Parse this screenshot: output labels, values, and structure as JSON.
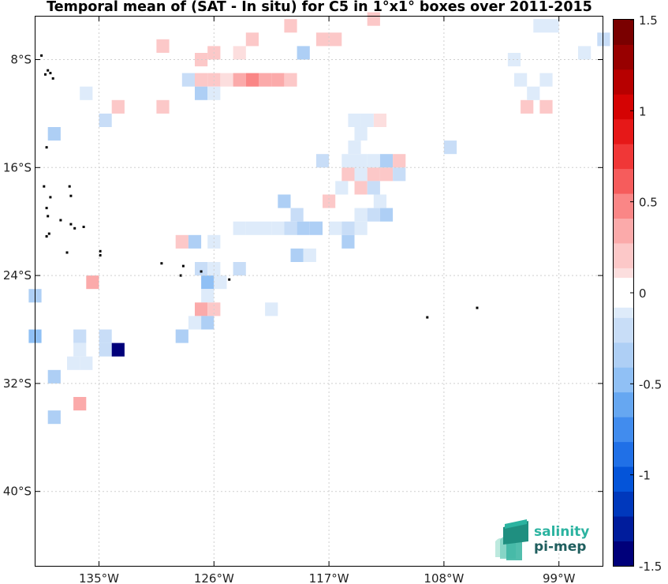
{
  "title": "Temporal mean of (SAT - In situ) for C5 in 1°x1° boxes over 2011-2015",
  "map": {
    "lon_ticks": [
      "135°W",
      "126°W",
      "117°W",
      "108°W",
      "99°W"
    ],
    "lat_ticks": [
      "8°S",
      "16°S",
      "24°S",
      "32°S",
      "40°S"
    ],
    "lon_range": [
      -140,
      -95.5
    ],
    "lat_range": [
      -46,
      -4.5
    ],
    "cells": [
      [
        -113.5,
        -5,
        0.15
      ],
      [
        -120,
        -5.5,
        0.2
      ],
      [
        -100.5,
        -5.5,
        -0.1
      ],
      [
        -99.5,
        -5.5,
        -0.1
      ],
      [
        -126,
        -7.5,
        0.2
      ],
      [
        -123,
        -6.5,
        0.15
      ],
      [
        -130,
        -7,
        0.25
      ],
      [
        -127,
        -8,
        0.25
      ],
      [
        -117.5,
        -6.5,
        0.15
      ],
      [
        -116.5,
        -6.5,
        0.15
      ],
      [
        -95.5,
        -6.5,
        -0.25
      ],
      [
        -97,
        -7.5,
        -0.1
      ],
      [
        -119,
        -7.5,
        -0.3
      ],
      [
        -124,
        -7.5,
        0.1
      ],
      [
        -102.5,
        -8,
        -0.1
      ],
      [
        -128,
        -9.5,
        -0.2
      ],
      [
        -127,
        -9.5,
        0.25
      ],
      [
        -126,
        -9.5,
        0.15
      ],
      [
        -125,
        -9.5,
        0.1
      ],
      [
        -124,
        -9.5,
        0.35
      ],
      [
        -123,
        -9.5,
        0.45
      ],
      [
        -122,
        -9.5,
        0.3
      ],
      [
        -121,
        -9.5,
        0.4
      ],
      [
        -120,
        -9.5,
        0.2
      ],
      [
        -102,
        -9.5,
        -0.1
      ],
      [
        -100,
        -9.5,
        -0.1
      ],
      [
        -136,
        -10.5,
        -0.1
      ],
      [
        -127,
        -10.5,
        -0.3
      ],
      [
        -126,
        -10.5,
        -0.1
      ],
      [
        -133.5,
        -11.5,
        0.15
      ],
      [
        -130,
        -11.5,
        0.2
      ],
      [
        -100,
        -11.5,
        0.15
      ],
      [
        -101.5,
        -11.5,
        0.15
      ],
      [
        -101,
        -10.5,
        -0.1
      ],
      [
        -134.5,
        -12.5,
        -0.2
      ],
      [
        -115,
        -12.5,
        -0.1
      ],
      [
        -113,
        -12.5,
        0.1
      ],
      [
        -114,
        -12.5,
        -0.1
      ],
      [
        -138.5,
        -13.5,
        -0.3
      ],
      [
        -114.5,
        -13.5,
        -0.1
      ],
      [
        -115,
        -14.5,
        -0.1
      ],
      [
        -107.5,
        -14.5,
        -0.25
      ],
      [
        -117.5,
        -15.5,
        -0.25
      ],
      [
        -115.5,
        -15.5,
        -0.1
      ],
      [
        -114.5,
        -15.5,
        -0.1
      ],
      [
        -113.5,
        -15.5,
        -0.1
      ],
      [
        -112.5,
        -15.5,
        -0.35
      ],
      [
        -111.5,
        -15.5,
        0.2
      ],
      [
        -115.5,
        -16.5,
        0.2
      ],
      [
        -114.5,
        -16.5,
        -0.1
      ],
      [
        -113.5,
        -16.5,
        0.2
      ],
      [
        -112.5,
        -16.5,
        0.2
      ],
      [
        -111.5,
        -16.5,
        -0.25
      ],
      [
        -116,
        -17.5,
        -0.1
      ],
      [
        -114.5,
        -17.5,
        0.15
      ],
      [
        -113.5,
        -17.5,
        -0.15
      ],
      [
        -120.5,
        -18.5,
        -0.3
      ],
      [
        -117,
        -18.5,
        0.2
      ],
      [
        -113,
        -18.5,
        -0.1
      ],
      [
        -119.5,
        -19.5,
        -0.2
      ],
      [
        -114.5,
        -19.5,
        -0.1
      ],
      [
        -113.5,
        -19.5,
        -0.15
      ],
      [
        -112.5,
        -19.5,
        -0.4
      ],
      [
        -124,
        -20.5,
        -0.1
      ],
      [
        -123,
        -20.5,
        -0.1
      ],
      [
        -122,
        -20.5,
        -0.1
      ],
      [
        -121,
        -20.5,
        -0.1
      ],
      [
        -120,
        -20.5,
        -0.2
      ],
      [
        -119,
        -20.5,
        -0.3
      ],
      [
        -118,
        -20.5,
        -0.4
      ],
      [
        -116.5,
        -20.5,
        -0.1
      ],
      [
        -115.5,
        -20.5,
        -0.2
      ],
      [
        -114.5,
        -20.5,
        -0.1
      ],
      [
        -128.5,
        -21.5,
        0.15
      ],
      [
        -127.5,
        -21.5,
        -0.3
      ],
      [
        -126,
        -21.5,
        -0.1
      ],
      [
        -115.5,
        -21.5,
        -0.4
      ],
      [
        -119.5,
        -22.5,
        -0.3
      ],
      [
        -118.5,
        -22.5,
        -0.1
      ],
      [
        -127,
        -23.5,
        -0.2
      ],
      [
        -126,
        -23.5,
        -0.1
      ],
      [
        -124,
        -23.5,
        -0.25
      ],
      [
        -126.5,
        -24.5,
        -0.45
      ],
      [
        -125.5,
        -24.5,
        -0.1
      ],
      [
        -135.5,
        -24.5,
        0.3
      ],
      [
        -140,
        -25.5,
        -0.4
      ],
      [
        -126.5,
        -25.5,
        -0.1
      ],
      [
        -127,
        -26.5,
        0.3
      ],
      [
        -126,
        -26.5,
        0.15
      ],
      [
        -121.5,
        -26.5,
        -0.1
      ],
      [
        -127.5,
        -27.5,
        -0.1
      ],
      [
        -126.5,
        -27.5,
        -0.3
      ],
      [
        -140,
        -28.5,
        -0.5
      ],
      [
        -136.5,
        -28.5,
        -0.25
      ],
      [
        -134.5,
        -28.5,
        -0.25
      ],
      [
        -128.5,
        -28.5,
        -0.3
      ],
      [
        -136.5,
        -29.5,
        -0.1
      ],
      [
        -134.5,
        -29.5,
        -0.25
      ],
      [
        -133.5,
        -29.5,
        -1.5
      ],
      [
        -137,
        -30.5,
        -0.1
      ],
      [
        -136,
        -30.5,
        -0.1
      ],
      [
        -138.5,
        -31.5,
        -0.3
      ],
      [
        -136.5,
        -33.5,
        0.3
      ],
      [
        -138.5,
        -34.5,
        -0.3
      ]
    ],
    "islands": [
      [
        -139.5,
        -7.7
      ],
      [
        -139,
        -8.8
      ],
      [
        -138.6,
        -9.4
      ],
      [
        -138.8,
        -9.0
      ],
      [
        -139.2,
        -9.1
      ],
      [
        -139.1,
        -14.5
      ],
      [
        -139.3,
        -17.4
      ],
      [
        -137.3,
        -17.4
      ],
      [
        -137.2,
        -18.1
      ],
      [
        -138.8,
        -18.2
      ],
      [
        -139.1,
        -19.0
      ],
      [
        -139.0,
        -19.6
      ],
      [
        -138.0,
        -19.9
      ],
      [
        -137.2,
        -20.2
      ],
      [
        -136.9,
        -20.5
      ],
      [
        -136.2,
        -20.4
      ],
      [
        -138.9,
        -20.9
      ],
      [
        -139.1,
        -21.1
      ],
      [
        -137.5,
        -22.3
      ],
      [
        -134.9,
        -22.2
      ],
      [
        -134.9,
        -22.5
      ],
      [
        -130.1,
        -23.1
      ],
      [
        -128.4,
        -23.3
      ],
      [
        -128.6,
        -24.0
      ],
      [
        -127.0,
        -23.7
      ],
      [
        -124.8,
        -24.3
      ],
      [
        -109.3,
        -27.1
      ],
      [
        -105.4,
        -26.4
      ]
    ]
  },
  "colorbar": {
    "ticks": [
      "1.5",
      "1",
      "0.5",
      "0",
      "-0.5",
      "-1",
      "-1.5"
    ],
    "range": [
      -1.5,
      1.5
    ]
  },
  "logo": {
    "line1": "salinity",
    "line2": "pi-mep"
  },
  "colors": {
    "neg_max": "#00007a",
    "pos_max": "#7a0000",
    "grid": "#cfcfcf",
    "logo_teal": "#2bb3a0",
    "logo_dark": "#1f5e5e"
  }
}
